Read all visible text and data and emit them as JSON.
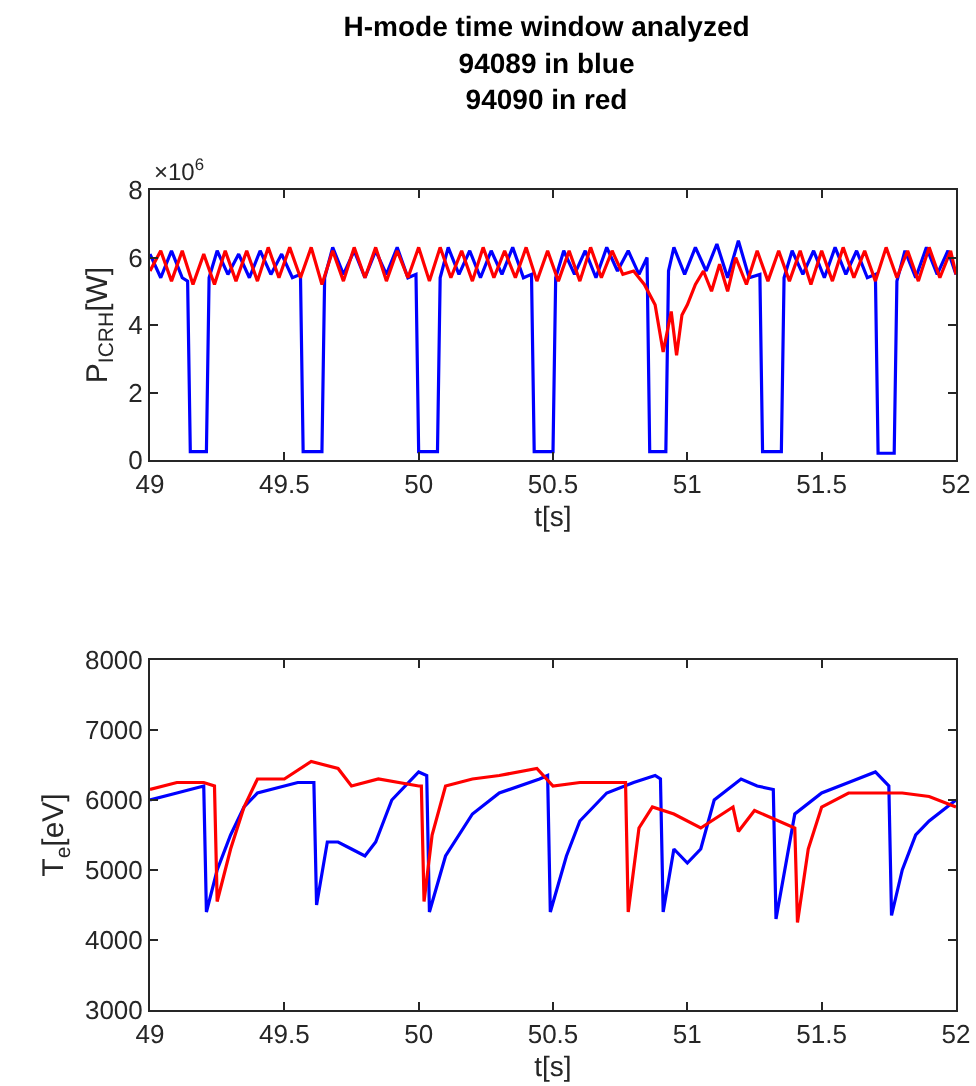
{
  "chart_data": [
    {
      "type": "line",
      "title": "H-mode time window analyzed\n94089 in blue\n94090 in red",
      "xlabel": "t[s]",
      "ylabel": "P$_{ICRH}$[W]",
      "annotations": [
        "×10$^{6}$"
      ],
      "xlim": [
        49,
        52
      ],
      "xticks": [
        49,
        49.5,
        50,
        50.5,
        51,
        51.5,
        52
      ],
      "ylim": [
        0,
        8
      ],
      "yticks": [
        0,
        2,
        4,
        6,
        8
      ],
      "grid": false,
      "series": [
        {
          "color": "#0000ff",
          "x": [
            49.0,
            49.04,
            49.08,
            49.12,
            49.14,
            49.15,
            49.21,
            49.22,
            49.25,
            49.29,
            49.33,
            49.37,
            49.41,
            49.45,
            49.49,
            49.53,
            49.56,
            49.57,
            49.64,
            49.65,
            49.68,
            49.72,
            49.76,
            49.8,
            49.84,
            49.88,
            49.92,
            49.96,
            49.99,
            50.0,
            50.07,
            50.08,
            50.11,
            50.15,
            50.19,
            50.23,
            50.27,
            50.31,
            50.35,
            50.39,
            50.42,
            50.43,
            50.5,
            50.51,
            50.54,
            50.58,
            50.62,
            50.66,
            50.7,
            50.74,
            50.78,
            50.82,
            50.85,
            50.86,
            50.92,
            50.93,
            50.95,
            50.99,
            51.03,
            51.07,
            51.11,
            51.15,
            51.19,
            51.23,
            51.27,
            51.28,
            51.35,
            51.36,
            51.39,
            51.43,
            51.47,
            51.51,
            51.55,
            51.59,
            51.63,
            51.67,
            51.7,
            51.71,
            51.77,
            51.78,
            51.81,
            51.85,
            51.89,
            51.93,
            51.97,
            52.0
          ],
          "values": [
            6.1,
            5.4,
            6.2,
            5.4,
            5.3,
            0.25,
            0.25,
            5.4,
            6.2,
            5.5,
            6.1,
            5.4,
            6.2,
            5.5,
            6.1,
            5.4,
            5.5,
            0.25,
            0.25,
            5.4,
            6.3,
            5.5,
            6.2,
            5.4,
            6.2,
            5.5,
            6.3,
            5.4,
            5.5,
            0.25,
            0.25,
            5.4,
            6.3,
            5.5,
            6.2,
            5.4,
            6.2,
            5.5,
            6.3,
            5.4,
            5.5,
            0.25,
            0.25,
            5.4,
            6.2,
            5.5,
            6.2,
            5.4,
            6.3,
            5.6,
            6.2,
            5.5,
            6.0,
            0.25,
            0.25,
            5.6,
            6.3,
            5.5,
            6.3,
            5.6,
            6.4,
            5.4,
            6.5,
            5.4,
            5.5,
            0.25,
            0.25,
            5.4,
            6.2,
            5.5,
            6.2,
            5.4,
            6.3,
            5.5,
            6.2,
            5.4,
            5.5,
            0.2,
            0.2,
            5.3,
            6.2,
            5.4,
            6.3,
            5.5,
            6.2,
            5.5
          ]
        },
        {
          "color": "#ff0000",
          "x": [
            49.0,
            49.04,
            49.08,
            49.12,
            49.16,
            49.2,
            49.24,
            49.28,
            49.32,
            49.36,
            49.4,
            49.44,
            49.48,
            49.52,
            49.56,
            49.6,
            49.64,
            49.68,
            49.72,
            49.76,
            49.8,
            49.84,
            49.88,
            49.92,
            49.96,
            50.0,
            50.04,
            50.08,
            50.12,
            50.16,
            50.2,
            50.24,
            50.28,
            50.32,
            50.36,
            50.4,
            50.44,
            50.48,
            50.52,
            50.56,
            50.6,
            50.64,
            50.68,
            50.72,
            50.76,
            50.8,
            50.84,
            50.88,
            50.91,
            50.94,
            50.96,
            50.98,
            51.0,
            51.03,
            51.06,
            51.09,
            51.12,
            51.15,
            51.18,
            51.22,
            51.26,
            51.3,
            51.34,
            51.38,
            51.42,
            51.46,
            51.5,
            51.54,
            51.58,
            51.62,
            51.66,
            51.7,
            51.74,
            51.78,
            51.82,
            51.86,
            51.9,
            51.94,
            51.98,
            52.0
          ],
          "values": [
            5.6,
            6.2,
            5.3,
            6.2,
            5.2,
            6.1,
            5.2,
            6.2,
            5.3,
            6.2,
            5.3,
            6.3,
            5.4,
            6.3,
            5.4,
            6.3,
            5.2,
            6.2,
            5.3,
            6.3,
            5.4,
            6.3,
            5.3,
            6.2,
            5.4,
            6.3,
            5.3,
            6.3,
            5.4,
            6.2,
            5.3,
            6.3,
            5.4,
            6.2,
            5.4,
            6.3,
            5.3,
            6.2,
            5.3,
            6.2,
            5.3,
            6.3,
            5.4,
            6.2,
            5.5,
            5.6,
            5.2,
            4.6,
            3.2,
            4.4,
            3.1,
            4.3,
            4.6,
            5.2,
            5.6,
            5.0,
            5.8,
            5.0,
            6.0,
            5.2,
            6.2,
            5.3,
            6.2,
            5.3,
            6.2,
            5.2,
            6.2,
            5.3,
            6.3,
            5.4,
            6.2,
            5.3,
            6.3,
            5.4,
            6.2,
            5.3,
            6.3,
            5.4,
            6.2,
            5.5
          ]
        }
      ]
    },
    {
      "type": "line",
      "xlabel": "t[s]",
      "ylabel": "T$_{e}$[eV]",
      "xlim": [
        49,
        52
      ],
      "xticks": [
        49,
        49.5,
        50,
        50.5,
        51,
        51.5,
        52
      ],
      "ylim": [
        3000,
        8000
      ],
      "yticks": [
        3000,
        4000,
        5000,
        6000,
        7000,
        8000
      ],
      "grid": false,
      "series": [
        {
          "color": "#0000ff",
          "x": [
            49.0,
            49.1,
            49.2,
            49.21,
            49.25,
            49.3,
            49.35,
            49.4,
            49.55,
            49.61,
            49.62,
            49.66,
            49.7,
            49.75,
            49.8,
            49.84,
            49.9,
            50.0,
            50.03,
            50.04,
            50.1,
            50.2,
            50.3,
            50.45,
            50.48,
            50.49,
            50.55,
            50.6,
            50.7,
            50.8,
            50.88,
            50.9,
            50.91,
            50.95,
            51.0,
            51.05,
            51.1,
            51.2,
            51.26,
            51.32,
            51.33,
            51.4,
            51.5,
            51.6,
            51.7,
            51.75,
            51.76,
            51.8,
            51.85,
            51.9,
            52.0
          ],
          "values": [
            6000,
            6100,
            6200,
            4400,
            5000,
            5500,
            5900,
            6100,
            6250,
            6250,
            4500,
            5400,
            5400,
            5300,
            5200,
            5400,
            6000,
            6400,
            6350,
            4400,
            5200,
            5800,
            6100,
            6300,
            6350,
            4400,
            5200,
            5700,
            6100,
            6250,
            6350,
            6300,
            4400,
            5300,
            5100,
            5300,
            6000,
            6300,
            6200,
            6150,
            4300,
            5800,
            6100,
            6250,
            6400,
            6200,
            4350,
            5000,
            5500,
            5700,
            6000
          ]
        },
        {
          "color": "#ff0000",
          "x": [
            49.0,
            49.1,
            49.2,
            49.24,
            49.25,
            49.3,
            49.35,
            49.4,
            49.5,
            49.6,
            49.7,
            49.75,
            49.85,
            50.0,
            50.01,
            50.02,
            50.05,
            50.1,
            50.2,
            50.3,
            50.44,
            50.5,
            50.6,
            50.77,
            50.78,
            50.82,
            50.87,
            50.95,
            51.05,
            51.17,
            51.19,
            51.25,
            51.4,
            51.41,
            51.45,
            51.5,
            51.6,
            51.8,
            51.9,
            52.0
          ],
          "values": [
            6150,
            6250,
            6250,
            6200,
            4550,
            5300,
            5900,
            6300,
            6300,
            6550,
            6450,
            6200,
            6300,
            6200,
            6200,
            4550,
            5500,
            6200,
            6300,
            6350,
            6450,
            6200,
            6250,
            6250,
            4400,
            5600,
            5900,
            5800,
            5600,
            5900,
            5550,
            5850,
            5600,
            4250,
            5300,
            5900,
            6100,
            6100,
            6050,
            5900
          ]
        }
      ]
    }
  ]
}
